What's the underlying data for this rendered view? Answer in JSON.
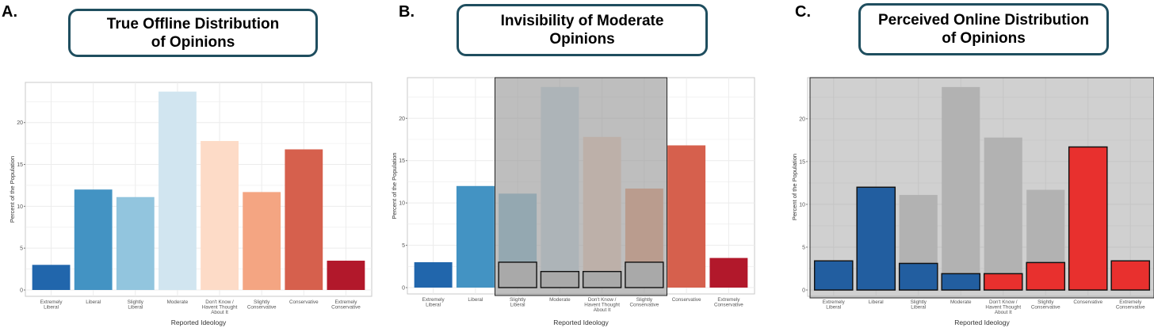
{
  "panels": [
    {
      "letter": "A.",
      "title": "True Offline Distribution\nof Opinions"
    },
    {
      "letter": "B.",
      "title": "Invisibility of Moderate\nOpinions"
    },
    {
      "letter": "C.",
      "title": "Perceived Online Distribution\nof Opinions"
    }
  ],
  "chart_data": [
    {
      "type": "bar",
      "categories": [
        "Extremely\nLiberal",
        "Liberal",
        "Slightly\nLiberal",
        "Moderate",
        "Don't Know /\nHavent Thought\nAbout It",
        "Slightly\nConservative",
        "Conservative",
        "Extremely\nConservative"
      ],
      "values": [
        3.0,
        12.0,
        11.1,
        23.7,
        17.8,
        11.7,
        16.8,
        3.5
      ],
      "colors": [
        "#2166ac",
        "#4393c3",
        "#92c5de",
        "#d1e5f0",
        "#fddbc7",
        "#f4a582",
        "#d6604d",
        "#b2182b"
      ],
      "xlabel": "Reported Ideology",
      "ylabel": "Percent of the Population",
      "yticks": [
        0,
        5,
        10,
        15,
        20
      ],
      "ylim": [
        0,
        24.8
      ],
      "grid": true
    },
    {
      "type": "bar",
      "categories": [
        "Extremely\nLiberal",
        "Liberal",
        "Slightly\nLiberal",
        "Moderate",
        "Don't Know /\nHavent Thought\nAbout It",
        "Slightly\nConservative",
        "Conservative",
        "Extremely\nConservative"
      ],
      "values": [
        3.0,
        12.0,
        11.1,
        23.7,
        17.8,
        11.7,
        16.8,
        3.5
      ],
      "overlay_values": [
        null,
        null,
        3.0,
        1.9,
        1.9,
        3.0,
        null,
        null
      ],
      "colors": [
        "#2166ac",
        "#4393c3",
        "#92c5de",
        "#d1e5f0",
        "#fddbc7",
        "#f4a582",
        "#d6604d",
        "#b2182b"
      ],
      "shaded_categories": [
        "Slightly\nLiberal",
        "Moderate",
        "Don't Know /\nHavent Thought\nAbout It",
        "Slightly\nConservative"
      ],
      "xlabel": "Reported Ideology",
      "ylabel": "Percent of the Population",
      "yticks": [
        0,
        5,
        10,
        15,
        20
      ],
      "ylim": [
        0,
        24.8
      ],
      "grid": true
    },
    {
      "type": "bar",
      "categories": [
        "Extremely\nLiberal",
        "Liberal",
        "Slightly\nLiberal",
        "Moderate",
        "Don't Know /\nHavent Thought\nAbout It",
        "Slightly\nConservative",
        "Conservative",
        "Extremely\nConservative"
      ],
      "values": [
        3.4,
        12.0,
        3.1,
        1.9,
        1.9,
        3.2,
        16.7,
        3.4
      ],
      "ghost_values": [
        null,
        null,
        11.1,
        23.7,
        17.8,
        11.7,
        null,
        null
      ],
      "colors": [
        "#225ea0",
        "#225ea0",
        "#225ea0",
        "#225ea0",
        "#e8302e",
        "#e8302e",
        "#e8302e",
        "#e8302e"
      ],
      "xlabel": "Reported Ideology",
      "ylabel": "Percent of the Population",
      "yticks": [
        0,
        5,
        10,
        15,
        20
      ],
      "ylim": [
        0,
        24.8
      ],
      "grid": true,
      "shaded_all": true
    }
  ]
}
